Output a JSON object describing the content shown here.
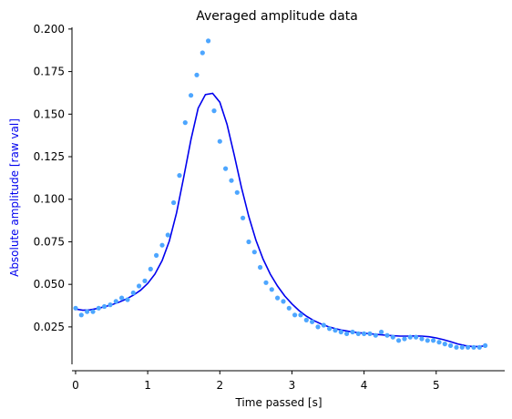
{
  "chart_data": {
    "type": "scatter",
    "title": "Averaged amplitude data",
    "xlabel": "Time passed [s]",
    "ylabel": "Absolute amplitude [raw val]",
    "xlim": [
      -0.05,
      5.95
    ],
    "ylim": [
      0.003,
      0.201
    ],
    "xticks": [
      0,
      1,
      2,
      3,
      4,
      5
    ],
    "yticks": [
      0.025,
      0.05,
      0.075,
      0.1,
      0.125,
      0.15,
      0.175,
      0.2
    ],
    "xtick_labels": [
      "0",
      "1",
      "2",
      "3",
      "4",
      "5"
    ],
    "ytick_labels": [
      "0.025",
      "0.050",
      "0.075",
      "0.100",
      "0.125",
      "0.150",
      "0.175",
      "0.200"
    ],
    "grid": false,
    "legend": "none",
    "colors": {
      "points": "#4da6ff",
      "fit": "#0000ee",
      "ylabel": "#0000ee",
      "axes": "#000000"
    },
    "series": [
      {
        "type": "scatter",
        "x": [
          0.0,
          0.08,
          0.16,
          0.24,
          0.32,
          0.4,
          0.48,
          0.56,
          0.64,
          0.72,
          0.8,
          0.88,
          0.96,
          1.04,
          1.12,
          1.2,
          1.28,
          1.36,
          1.44,
          1.52,
          1.6,
          1.68,
          1.76,
          1.84,
          1.92,
          2.0,
          2.08,
          2.16,
          2.24,
          2.32,
          2.4,
          2.48,
          2.56,
          2.64,
          2.72,
          2.8,
          2.88,
          2.96,
          3.04,
          3.12,
          3.2,
          3.28,
          3.36,
          3.44,
          3.52,
          3.6,
          3.68,
          3.76,
          3.84,
          3.92,
          4.0,
          4.08,
          4.16,
          4.24,
          4.32,
          4.4,
          4.48,
          4.56,
          4.64,
          4.72,
          4.8,
          4.88,
          4.96,
          5.04,
          5.12,
          5.2,
          5.28,
          5.36,
          5.44,
          5.52,
          5.6,
          5.68
        ],
        "y": [
          0.036,
          0.032,
          0.034,
          0.034,
          0.036,
          0.037,
          0.038,
          0.04,
          0.042,
          0.041,
          0.045,
          0.049,
          0.052,
          0.059,
          0.067,
          0.073,
          0.079,
          0.098,
          0.114,
          0.145,
          0.161,
          0.173,
          0.186,
          0.193,
          0.152,
          0.134,
          0.118,
          0.111,
          0.104,
          0.089,
          0.075,
          0.069,
          0.06,
          0.051,
          0.047,
          0.042,
          0.04,
          0.036,
          0.032,
          0.032,
          0.029,
          0.028,
          0.025,
          0.026,
          0.024,
          0.023,
          0.022,
          0.021,
          0.022,
          0.021,
          0.021,
          0.021,
          0.02,
          0.022,
          0.02,
          0.019,
          0.017,
          0.018,
          0.019,
          0.019,
          0.018,
          0.017,
          0.017,
          0.016,
          0.015,
          0.014,
          0.013,
          0.013,
          0.013,
          0.013,
          0.013,
          0.014
        ]
      },
      {
        "type": "line",
        "x": [
          0.0,
          0.1,
          0.2,
          0.3,
          0.4,
          0.5,
          0.6,
          0.7,
          0.8,
          0.9,
          1.0,
          1.1,
          1.2,
          1.3,
          1.4,
          1.5,
          1.6,
          1.7,
          1.8,
          1.9,
          2.0,
          2.1,
          2.2,
          2.3,
          2.4,
          2.5,
          2.6,
          2.7,
          2.8,
          2.9,
          3.0,
          3.1,
          3.2,
          3.3,
          3.4,
          3.5,
          3.6,
          3.7,
          3.8,
          3.9,
          4.0,
          4.1,
          4.2,
          4.3,
          4.4,
          4.5,
          4.6,
          4.7,
          4.8,
          4.9,
          5.0,
          5.1,
          5.2,
          5.3,
          5.4,
          5.5,
          5.6,
          5.7
        ],
        "y": [
          0.0355,
          0.0348,
          0.035,
          0.0358,
          0.0368,
          0.038,
          0.0395,
          0.0413,
          0.0436,
          0.0465,
          0.0505,
          0.056,
          0.064,
          0.0755,
          0.092,
          0.113,
          0.135,
          0.1535,
          0.1615,
          0.1622,
          0.157,
          0.144,
          0.126,
          0.107,
          0.09,
          0.076,
          0.0648,
          0.056,
          0.049,
          0.0432,
          0.0385,
          0.0345,
          0.0313,
          0.0288,
          0.0268,
          0.0252,
          0.024,
          0.023,
          0.0223,
          0.0217,
          0.0213,
          0.0209,
          0.0205,
          0.0201,
          0.0198,
          0.0196,
          0.0196,
          0.0197,
          0.0196,
          0.0192,
          0.0185,
          0.0175,
          0.0163,
          0.015,
          0.014,
          0.0135,
          0.0135,
          0.014
        ]
      }
    ]
  }
}
